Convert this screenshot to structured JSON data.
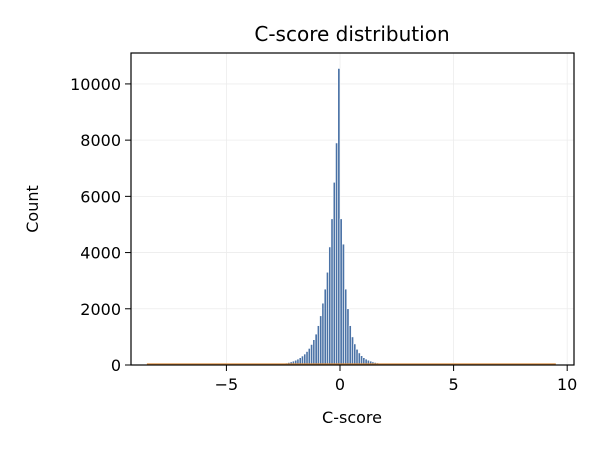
{
  "chart_data": {
    "type": "bar",
    "title": "C-score distribution",
    "xlabel": "C-score",
    "ylabel": "Count",
    "xlim": [
      -9.2,
      10.3
    ],
    "ylim": [
      0,
      11100
    ],
    "xticks": [
      -5,
      0,
      5,
      10
    ],
    "xtick_labels": [
      "−5",
      "0",
      "5",
      "10"
    ],
    "yticks": [
      0,
      2000,
      4000,
      6000,
      8000,
      10000
    ],
    "ytick_labels": [
      "0",
      "2000",
      "4000",
      "6000",
      "8000",
      "10000"
    ],
    "grid": true,
    "bar_color": "#4a72a6",
    "bar_edge_color": "#ffffff",
    "kde_color": "#d98a3a",
    "bin_width": 0.1,
    "bins": [
      {
        "x": -2.75,
        "y": 15
      },
      {
        "x": -2.65,
        "y": 25
      },
      {
        "x": -2.55,
        "y": 35
      },
      {
        "x": -2.45,
        "y": 50
      },
      {
        "x": -2.35,
        "y": 70
      },
      {
        "x": -2.25,
        "y": 90
      },
      {
        "x": -2.15,
        "y": 110
      },
      {
        "x": -2.05,
        "y": 140
      },
      {
        "x": -1.95,
        "y": 170
      },
      {
        "x": -1.85,
        "y": 210
      },
      {
        "x": -1.75,
        "y": 260
      },
      {
        "x": -1.65,
        "y": 320
      },
      {
        "x": -1.55,
        "y": 390
      },
      {
        "x": -1.45,
        "y": 480
      },
      {
        "x": -1.35,
        "y": 590
      },
      {
        "x": -1.25,
        "y": 730
      },
      {
        "x": -1.15,
        "y": 900
      },
      {
        "x": -1.05,
        "y": 1100
      },
      {
        "x": -0.95,
        "y": 1400
      },
      {
        "x": -0.85,
        "y": 1750
      },
      {
        "x": -0.75,
        "y": 2200
      },
      {
        "x": -0.65,
        "y": 2700
      },
      {
        "x": -0.55,
        "y": 3300
      },
      {
        "x": -0.45,
        "y": 4200
      },
      {
        "x": -0.35,
        "y": 5200
      },
      {
        "x": -0.25,
        "y": 6500
      },
      {
        "x": -0.15,
        "y": 7900
      },
      {
        "x": -0.05,
        "y": 10550
      },
      {
        "x": 0.05,
        "y": 5200
      },
      {
        "x": 0.15,
        "y": 4300
      },
      {
        "x": 0.25,
        "y": 2700
      },
      {
        "x": 0.35,
        "y": 2000
      },
      {
        "x": 0.45,
        "y": 1400
      },
      {
        "x": 0.55,
        "y": 1000
      },
      {
        "x": 0.65,
        "y": 750
      },
      {
        "x": 0.75,
        "y": 560
      },
      {
        "x": 0.85,
        "y": 430
      },
      {
        "x": 0.95,
        "y": 330
      },
      {
        "x": 1.05,
        "y": 260
      },
      {
        "x": 1.15,
        "y": 210
      },
      {
        "x": 1.25,
        "y": 170
      },
      {
        "x": 1.35,
        "y": 140
      },
      {
        "x": 1.45,
        "y": 110
      },
      {
        "x": 1.55,
        "y": 90
      },
      {
        "x": 1.65,
        "y": 75
      },
      {
        "x": 1.75,
        "y": 60
      },
      {
        "x": 1.85,
        "y": 50
      },
      {
        "x": 1.95,
        "y": 40
      },
      {
        "x": 2.05,
        "y": 32
      },
      {
        "x": 2.15,
        "y": 26
      },
      {
        "x": 2.25,
        "y": 20
      },
      {
        "x": 2.35,
        "y": 16
      },
      {
        "x": 2.45,
        "y": 12
      },
      {
        "x": 2.55,
        "y": 10
      }
    ],
    "kde_points": [
      {
        "x": -8.5,
        "y": 30
      },
      {
        "x": -6.0,
        "y": 30
      },
      {
        "x": -3.0,
        "y": 30
      },
      {
        "x": 3.0,
        "y": 30
      },
      {
        "x": 6.0,
        "y": 30
      },
      {
        "x": 9.5,
        "y": 30
      }
    ]
  }
}
